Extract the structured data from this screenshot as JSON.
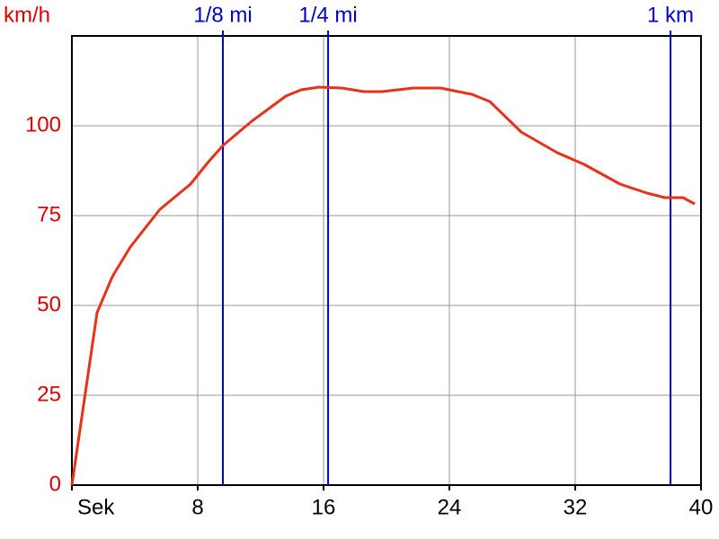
{
  "chart_data": {
    "type": "line",
    "y_label": "km/h",
    "x": [
      0,
      1.6,
      2.57,
      3.71,
      5.6,
      7.54,
      8.69,
      9.6,
      11.43,
      13.6,
      14.57,
      15.71,
      17.14,
      18.57,
      19.71,
      21.71,
      23.43,
      25.43,
      26.57,
      28.57,
      30.86,
      32.57,
      34.86,
      36.57,
      37.71,
      38.86,
      39.6
    ],
    "series": [
      {
        "color": "#e8311a",
        "values": [
          0,
          48,
          58,
          66.25,
          76.75,
          83.75,
          90,
          94.5,
          101.25,
          108.25,
          110,
          110.75,
          110.5,
          109.5,
          109.5,
          110.5,
          110.5,
          108.75,
          106.75,
          98.25,
          92.5,
          89.25,
          83.75,
          81.25,
          80,
          80,
          78.25
        ]
      }
    ],
    "xlim": [
      0,
      40
    ],
    "ylim": [
      0,
      125
    ],
    "xticks": [
      {
        "value": 0,
        "label": "Sek"
      },
      8,
      16,
      24,
      32,
      40
    ],
    "yticks": [
      0,
      25,
      50,
      75,
      100
    ],
    "grid": true,
    "markers": [
      {
        "x": 9.6,
        "label": "1/8 mi"
      },
      {
        "x": 16.29,
        "label": "1/4 mi"
      },
      {
        "x": 38.06,
        "label": "1 km"
      }
    ],
    "marker_color": "#0000cc",
    "tick_label_color": "#dd0000"
  }
}
